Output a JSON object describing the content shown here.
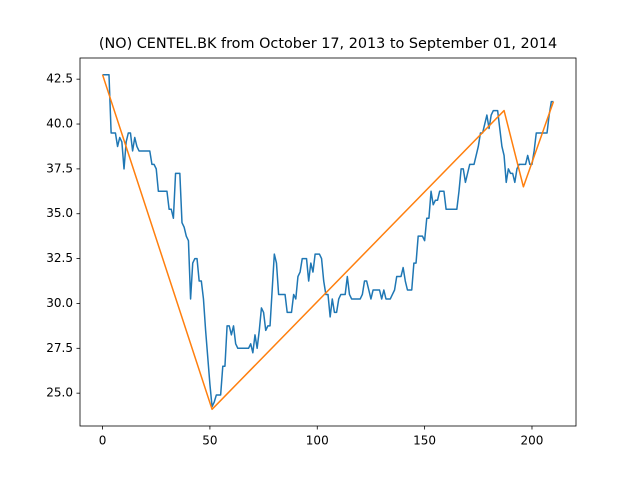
{
  "chart_data": {
    "type": "line",
    "title": "(NO) CENTEL.BK from October 17, 2013 to September 01, 2014",
    "series": [
      {
        "color": "#1f77b4",
        "x": [
          0,
          1,
          2,
          3,
          4,
          5,
          6,
          7,
          8,
          9,
          10,
          11,
          12,
          13,
          14,
          15,
          16,
          17,
          18,
          19,
          20,
          21,
          22,
          23,
          24,
          25,
          26,
          27,
          28,
          29,
          30,
          31,
          32,
          33,
          34,
          35,
          36,
          37,
          38,
          39,
          40,
          41,
          42,
          43,
          44,
          45,
          46,
          47,
          48,
          49,
          50,
          51,
          52,
          53,
          54,
          55,
          56,
          57,
          58,
          59,
          60,
          61,
          62,
          63,
          64,
          65,
          66,
          67,
          68,
          69,
          70,
          71,
          72,
          73,
          74,
          75,
          76,
          77,
          78,
          79,
          80,
          81,
          82,
          83,
          84,
          85,
          86,
          87,
          88,
          89,
          90,
          91,
          92,
          93,
          94,
          95,
          96,
          97,
          98,
          99,
          100,
          101,
          102,
          103,
          104,
          105,
          106,
          107,
          108,
          109,
          110,
          111,
          112,
          113,
          114,
          115,
          116,
          117,
          118,
          119,
          120,
          121,
          122,
          123,
          124,
          125,
          126,
          127,
          128,
          129,
          130,
          131,
          132,
          133,
          134,
          135,
          136,
          137,
          138,
          139,
          140,
          141,
          142,
          143,
          144,
          145,
          146,
          147,
          148,
          149,
          150,
          151,
          152,
          153,
          154,
          155,
          156,
          157,
          158,
          159,
          160,
          161,
          162,
          163,
          164,
          165,
          166,
          167,
          168,
          169,
          170,
          171,
          172,
          173,
          174,
          175,
          176,
          177,
          178,
          179,
          180,
          181,
          182,
          183,
          184,
          185,
          186,
          187,
          188,
          189,
          190,
          191,
          192,
          193,
          194,
          195,
          196,
          197,
          198,
          199,
          200,
          201,
          202,
          203,
          204,
          205,
          206,
          207,
          208,
          209,
          210
        ],
        "values": [
          42.75,
          42.75,
          42.75,
          42.75,
          39.5,
          39.5,
          39.5,
          38.75,
          39.25,
          39.0,
          37.5,
          39.0,
          39.5,
          39.5,
          38.5,
          39.25,
          38.75,
          38.5,
          38.5,
          38.5,
          38.5,
          38.5,
          38.5,
          37.75,
          37.75,
          37.5,
          36.25,
          36.25,
          36.25,
          36.25,
          36.25,
          35.25,
          35.25,
          34.75,
          37.25,
          37.25,
          37.25,
          34.5,
          34.25,
          33.75,
          33.5,
          30.25,
          32.25,
          32.5,
          32.5,
          31.25,
          31.25,
          30.25,
          28.5,
          27.0,
          25.5,
          24.25,
          24.5,
          24.9,
          24.9,
          24.9,
          26.5,
          26.5,
          28.75,
          28.75,
          28.25,
          28.75,
          27.75,
          27.5,
          27.5,
          27.5,
          27.5,
          27.5,
          27.5,
          27.75,
          27.25,
          28.25,
          27.5,
          28.5,
          29.75,
          29.5,
          28.5,
          28.75,
          28.75,
          30.75,
          32.75,
          32.25,
          30.5,
          30.5,
          30.5,
          30.5,
          29.5,
          29.5,
          29.5,
          30.5,
          30.25,
          31.5,
          31.75,
          32.5,
          32.5,
          32.5,
          31.25,
          32.25,
          31.75,
          32.75,
          32.75,
          32.75,
          32.5,
          31.25,
          30.5,
          30.5,
          29.25,
          30.25,
          29.5,
          29.5,
          30.25,
          30.5,
          30.5,
          30.5,
          31.5,
          30.5,
          30.25,
          30.25,
          30.25,
          30.25,
          30.25,
          30.5,
          31.25,
          31.25,
          30.75,
          30.25,
          30.75,
          30.75,
          30.75,
          30.75,
          30.25,
          30.75,
          30.25,
          30.25,
          30.25,
          30.5,
          30.75,
          31.5,
          31.5,
          31.5,
          32.0,
          31.25,
          30.75,
          30.75,
          30.75,
          32.25,
          32.25,
          33.75,
          33.75,
          33.75,
          33.5,
          34.75,
          34.75,
          36.25,
          35.5,
          35.75,
          35.75,
          36.25,
          36.25,
          36.25,
          35.25,
          35.25,
          35.25,
          35.25,
          35.25,
          35.25,
          36.25,
          37.5,
          37.5,
          36.75,
          37.25,
          37.75,
          37.75,
          37.75,
          38.25,
          38.75,
          39.5,
          39.5,
          40.0,
          40.5,
          39.75,
          40.5,
          40.75,
          40.75,
          40.75,
          39.75,
          38.75,
          38.25,
          36.75,
          37.5,
          37.25,
          37.25,
          36.75,
          37.5,
          37.75,
          37.75,
          37.75,
          37.75,
          38.25,
          37.75,
          37.75,
          38.5,
          39.5,
          39.5,
          39.5,
          39.5,
          39.5,
          39.5,
          40.5,
          41.25,
          41.25
        ]
      },
      {
        "color": "#ff7f0e",
        "x": [
          0,
          51,
          187,
          196,
          210
        ],
        "values": [
          42.75,
          24.1,
          40.75,
          36.5,
          41.25
        ]
      }
    ],
    "xlim": [
      -10.5,
      220.5
    ],
    "xticks": [
      0,
      50,
      100,
      150,
      200
    ],
    "ylim": [
      23.17,
      43.68
    ],
    "yticks": [
      {
        "value": 25.0,
        "label": "25.0"
      },
      27.5,
      {
        "value": 30.0,
        "label": "30.0"
      },
      32.5,
      {
        "value": 35.0,
        "label": "35.0"
      },
      37.5,
      {
        "value": 40.0,
        "label": "40.0"
      },
      42.5
    ]
  }
}
